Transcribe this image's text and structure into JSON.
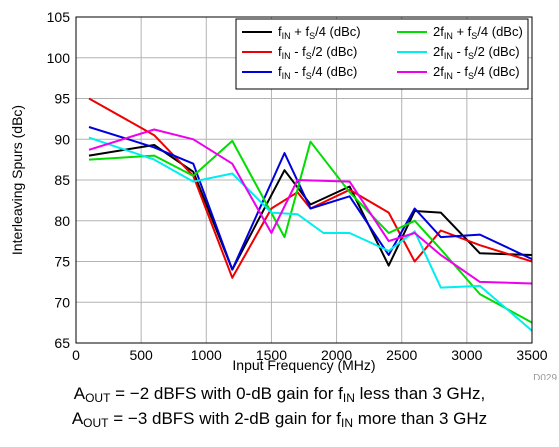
{
  "chart_data": {
    "type": "line",
    "title": "",
    "xlabel": "Input Frequency (MHz)",
    "ylabel": "Interleaving Spurs (dBc)",
    "xlim": [
      0,
      3500
    ],
    "ylim": [
      65,
      105
    ],
    "xticks": [
      0,
      500,
      1000,
      1500,
      2000,
      2500,
      3000,
      3500
    ],
    "yticks": [
      65,
      70,
      75,
      80,
      85,
      90,
      95,
      100,
      105
    ],
    "grid": true,
    "legend_position": "top-right",
    "figure_id": "D029",
    "series": [
      {
        "name": "fIN + fS/4 (dBc)",
        "legend": [
          "f",
          "IN",
          " + f",
          "S",
          "/4 (dBc)"
        ],
        "color": "#000000",
        "x": [
          100,
          600,
          900,
          1200,
          1600,
          1800,
          2100,
          2400,
          2600,
          2800,
          3100,
          3500
        ],
        "y": [
          88.0,
          89.3,
          86.0,
          74.0,
          86.2,
          82.0,
          84.2,
          74.5,
          81.2,
          81.0,
          76.0,
          75.8
        ]
      },
      {
        "name": "fIN - fS/2 (dBc)",
        "legend": [
          "f",
          "IN",
          " - f",
          "S",
          "/2 (dBc)"
        ],
        "color": "#ee0000",
        "x": [
          100,
          600,
          900,
          1200,
          1500,
          1700,
          1800,
          2100,
          2400,
          2600,
          2800,
          3100,
          3500
        ],
        "y": [
          95.0,
          90.5,
          85.5,
          73.0,
          81.5,
          83.5,
          81.5,
          83.8,
          81.0,
          75.0,
          78.8,
          77.0,
          75.0
        ]
      },
      {
        "name": "fIN - fS/4 (dBc)",
        "legend": [
          "f",
          "IN",
          " - f",
          "S",
          "/4 (dBc)"
        ],
        "color": "#0000dd",
        "x": [
          100,
          600,
          900,
          1200,
          1600,
          1800,
          2100,
          2400,
          2600,
          2800,
          3100,
          3500
        ],
        "y": [
          91.5,
          89.0,
          87.0,
          74.0,
          88.3,
          81.5,
          83.0,
          75.8,
          81.5,
          78.0,
          78.3,
          75.3
        ]
      },
      {
        "name": "2fIN + fS/4 (dBc)",
        "legend": [
          "2f",
          "IN",
          " + f",
          "S",
          "/4 (dBc)"
        ],
        "color": "#00dd00",
        "x": [
          100,
          600,
          900,
          1200,
          1600,
          1800,
          2100,
          2400,
          2600,
          2800,
          3100,
          3500
        ],
        "y": [
          87.5,
          88.0,
          85.5,
          89.8,
          78.0,
          89.7,
          83.5,
          78.5,
          80.0,
          76.5,
          71.0,
          67.5
        ]
      },
      {
        "name": "2fIN - fS/2 (dBc)",
        "legend": [
          "2f",
          "IN",
          " - f",
          "S",
          "/2 (dBc)"
        ],
        "color": "#00eeee",
        "x": [
          100,
          600,
          900,
          1200,
          1500,
          1700,
          1900,
          2100,
          2400,
          2600,
          2800,
          3100,
          3500
        ],
        "y": [
          90.2,
          87.5,
          84.8,
          85.8,
          81.0,
          80.8,
          78.5,
          78.5,
          76.3,
          78.7,
          71.8,
          72.0,
          66.5
        ]
      },
      {
        "name": "2fIN - fS/4 (dBc)",
        "legend": [
          "2f",
          "IN",
          " - f",
          "S",
          "/4 (dBc)"
        ],
        "color": "#ee00ee",
        "x": [
          100,
          600,
          900,
          1200,
          1500,
          1700,
          2100,
          2400,
          2600,
          2800,
          3100,
          3500
        ],
        "y": [
          88.7,
          91.2,
          90.0,
          87.0,
          78.5,
          85.0,
          84.8,
          77.5,
          78.5,
          75.8,
          72.5,
          72.3
        ]
      }
    ]
  },
  "caption": {
    "line1": {
      "a": "A",
      "sub1": "OUT",
      "b": " = −2 dBFS with 0-dB gain for f",
      "sub2": "IN",
      "c": " less than 3 GHz,"
    },
    "line2": {
      "a": "A",
      "sub1": "OUT",
      "b": " = −3 dBFS with 2-dB gain for f",
      "sub2": "IN",
      "c": " more than 3 GHz"
    }
  }
}
